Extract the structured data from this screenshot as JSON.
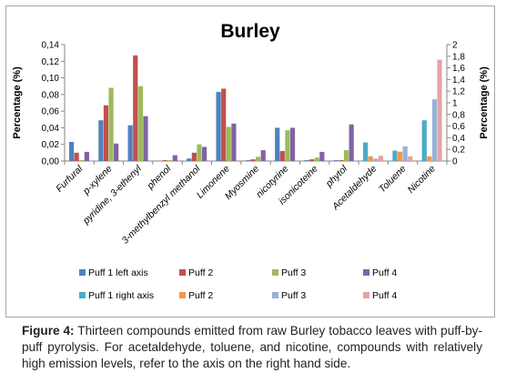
{
  "chart_data": {
    "type": "bar",
    "title": "Burley",
    "ylabel_left": "Percentage (%)",
    "ylabel_right": "Percentage (%)",
    "ylim_left": [
      0,
      0.14
    ],
    "ylim_right": [
      0,
      2
    ],
    "yticks_left": [
      "0,00",
      "0,02",
      "0,04",
      "0,06",
      "0,08",
      "0,10",
      "0,12",
      "0,14"
    ],
    "yticks_right": [
      "0",
      "0,2",
      "0,4",
      "0,6",
      "0,8",
      "1",
      "1,2",
      "1,4",
      "1,6",
      "1,8",
      "2"
    ],
    "grid": false,
    "legend_position": "bottom",
    "categories": [
      "Furfural",
      "p-xylene",
      "pyridine, 3-ethenyl",
      "phenol",
      "3-methylbenzyl methanol",
      "Limonene",
      "Myosmine",
      "nicotyrine",
      "isonicoteine",
      "phytol",
      "Acetaldehyde",
      "Toluene",
      "Nicotine"
    ],
    "series": [
      {
        "name": "Puff 1 left axis",
        "axis": "left",
        "color": "#4f81bd",
        "values": [
          0.023,
          0.049,
          0.043,
          0.0,
          0.003,
          0.083,
          0.001,
          0.04,
          0.001,
          0.001,
          null,
          null,
          null
        ]
      },
      {
        "name": "Puff 2",
        "axis": "left",
        "color": "#c0504d",
        "values": [
          0.01,
          0.067,
          0.127,
          0.001,
          0.01,
          0.087,
          0.002,
          0.012,
          0.002,
          0.001,
          null,
          null,
          null
        ]
      },
      {
        "name": "Puff 3",
        "axis": "left",
        "color": "#9bbb59",
        "values": [
          0.001,
          0.088,
          0.09,
          0.001,
          0.02,
          0.041,
          0.005,
          0.037,
          0.004,
          0.013,
          null,
          null,
          null
        ]
      },
      {
        "name": "Puff 4",
        "axis": "left",
        "color": "#8064a2",
        "values": [
          0.011,
          0.021,
          0.054,
          0.007,
          0.017,
          0.045,
          0.013,
          0.04,
          0.011,
          0.044,
          null,
          null,
          null
        ]
      },
      {
        "name": "Puff 1 right axis",
        "axis": "right",
        "color": "#4bacc6",
        "values": [
          null,
          null,
          null,
          null,
          null,
          null,
          null,
          null,
          null,
          null,
          0.32,
          0.18,
          0.7
        ]
      },
      {
        "name": "Puff 2",
        "axis": "right",
        "color": "#f79646",
        "values": [
          null,
          null,
          null,
          null,
          null,
          null,
          null,
          null,
          null,
          null,
          0.08,
          0.16,
          0.08
        ]
      },
      {
        "name": "Puff 3",
        "axis": "right",
        "color": "#95b3d7",
        "values": [
          null,
          null,
          null,
          null,
          null,
          null,
          null,
          null,
          null,
          null,
          0.04,
          0.25,
          1.06
        ]
      },
      {
        "name": "Puff 4",
        "axis": "right",
        "color": "#e6a3a3",
        "values": [
          null,
          null,
          null,
          null,
          null,
          null,
          null,
          null,
          null,
          null,
          0.09,
          0.08,
          1.74
        ]
      }
    ]
  },
  "caption": {
    "label": "Figure 4:",
    "text": " Thirteen compounds emitted from raw Burley tobacco leaves with puff-by-puff pyrolysis. For acetaldehyde, toluene, and nicotine, compounds with relatively high emission levels, refer to the axis on the right hand side."
  }
}
